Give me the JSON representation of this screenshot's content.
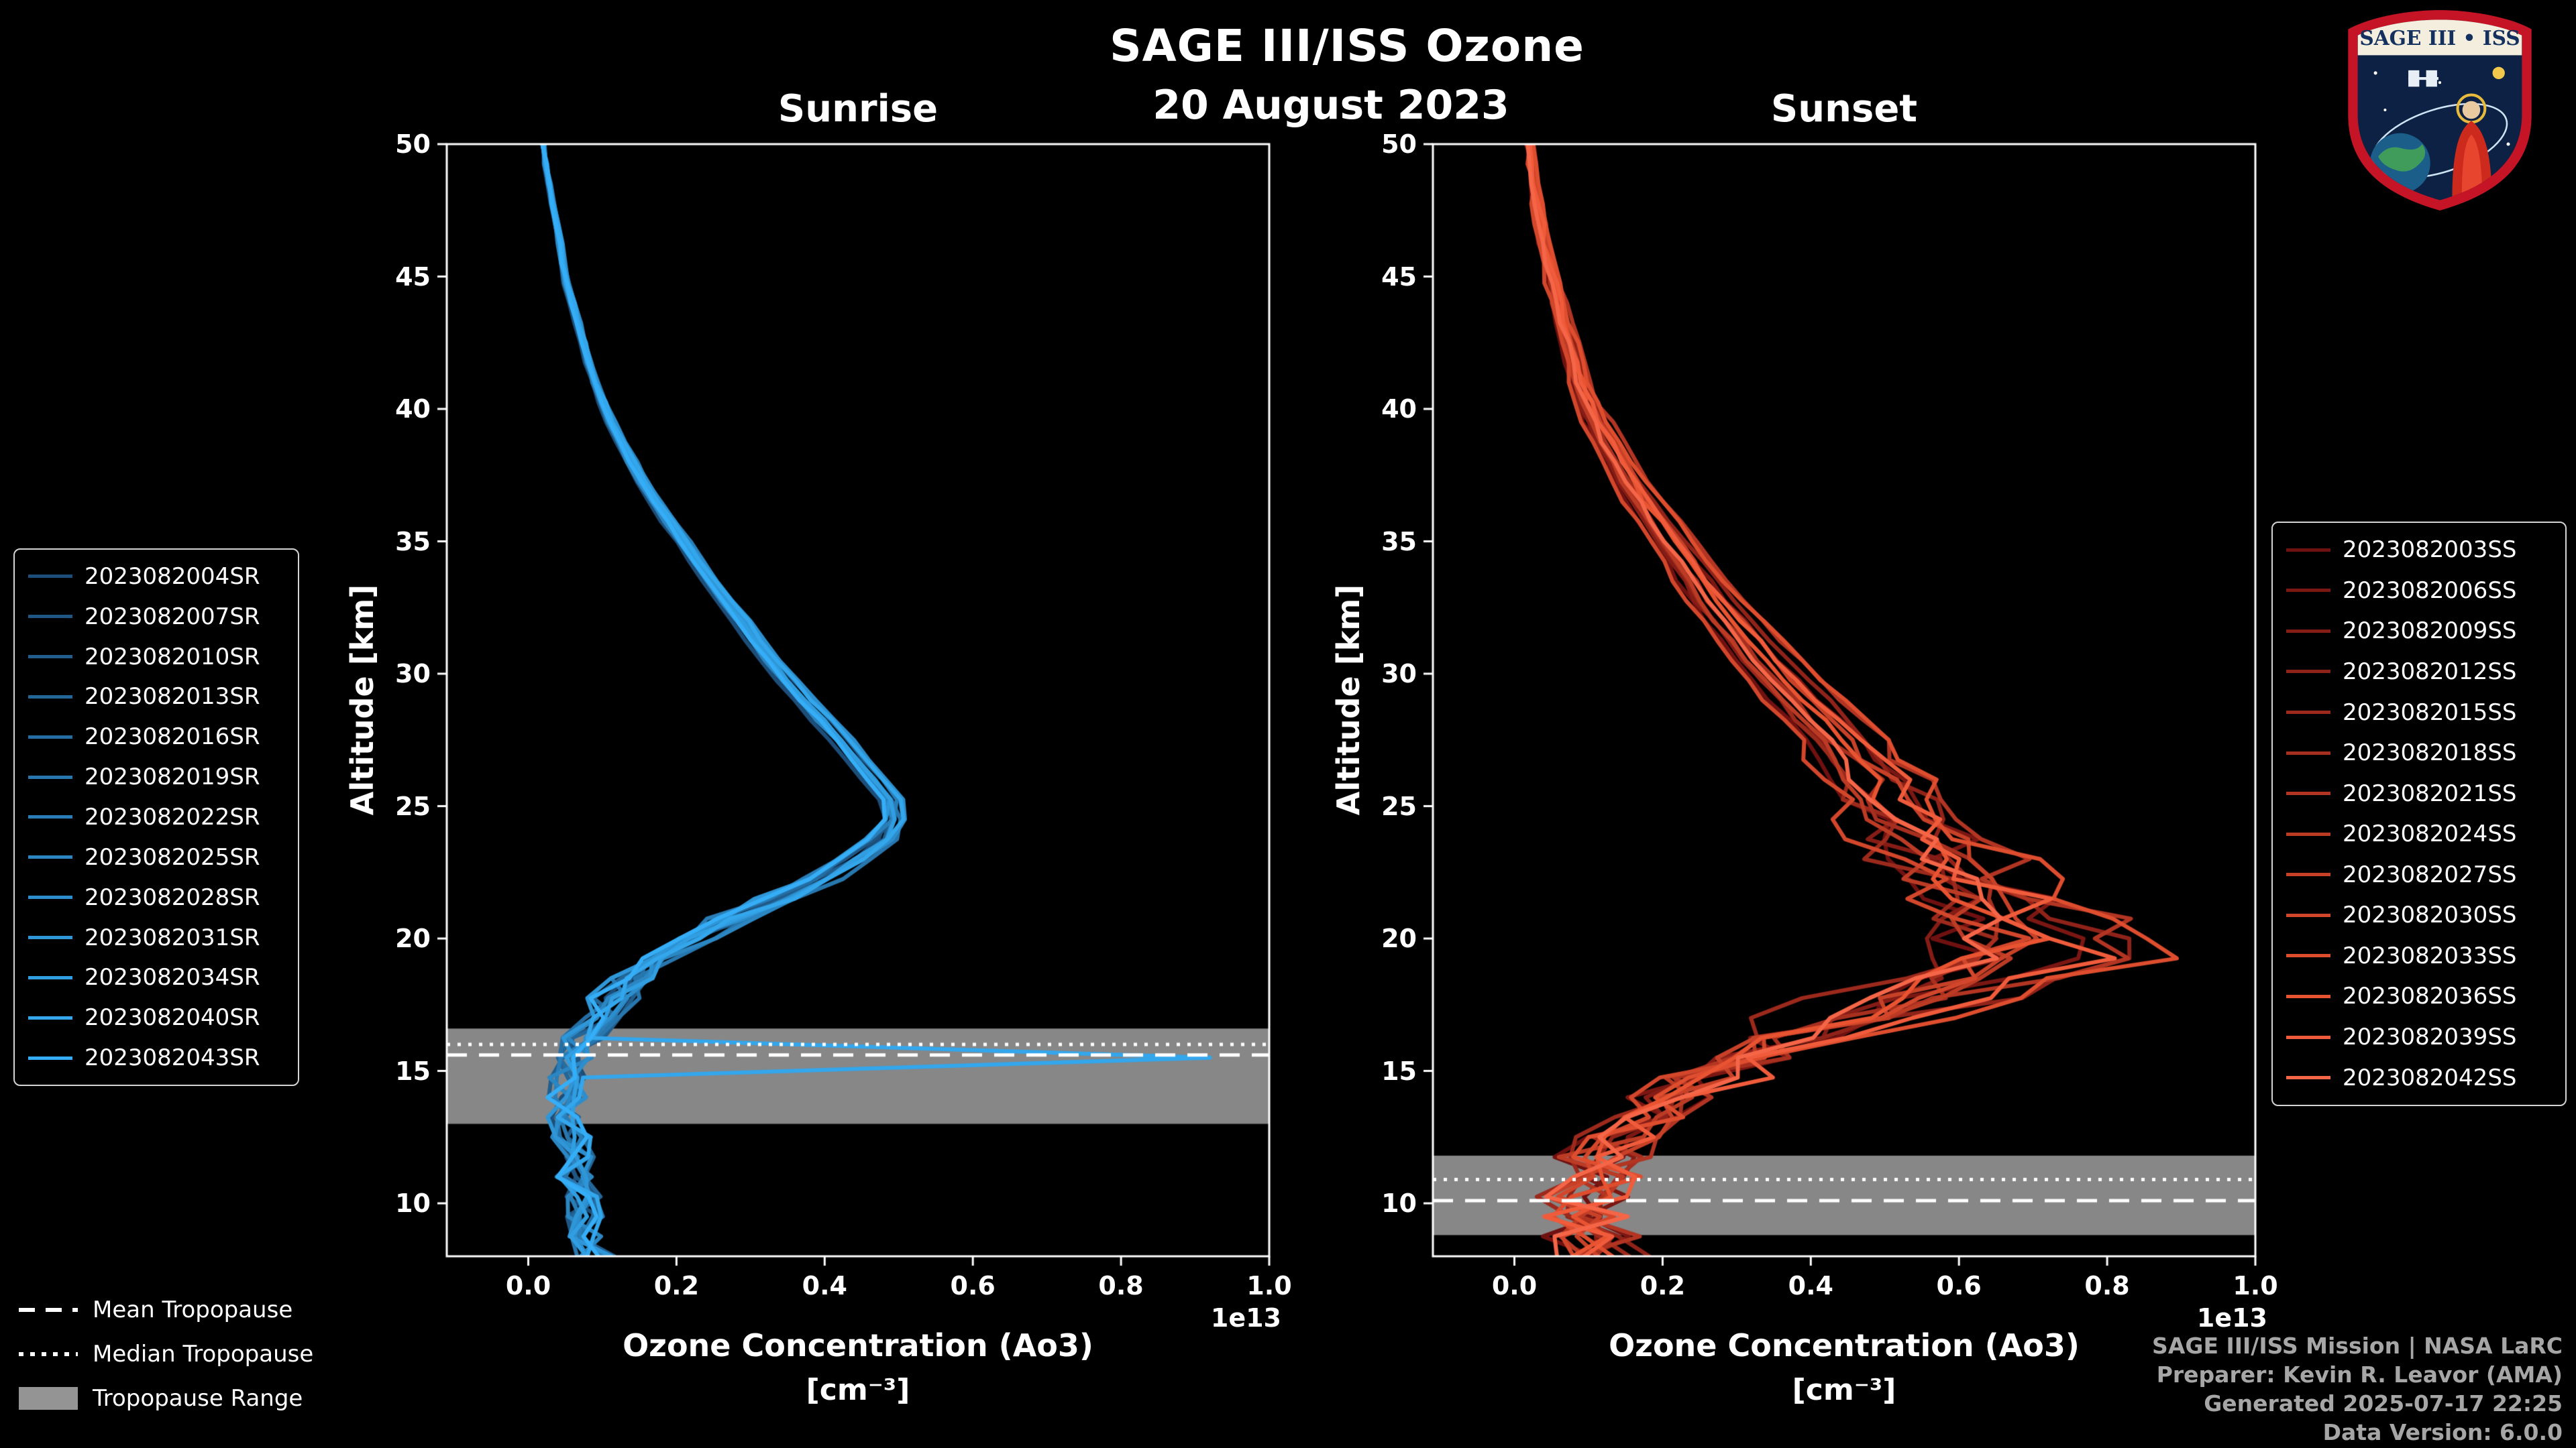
{
  "header": {
    "title": "SAGE III/ISS Ozone",
    "date": "20 August 2023"
  },
  "logo": {
    "title": "SAGE III • ISS"
  },
  "credits": {
    "lines": [
      "SAGE III/ISS Mission | NASA LaRC",
      "Preparer: Kevin R. Leavor (AMA)",
      "Generated 2025-07-17 22:25",
      "Data Version: 6.0.0"
    ]
  },
  "tropopause_legend": {
    "items": [
      {
        "label": "Mean Tropopause",
        "style": "dashed"
      },
      {
        "label": "Median Tropopause",
        "style": "dotted"
      },
      {
        "label": "Tropopause Range",
        "style": "band"
      }
    ]
  },
  "chart_data": [
    {
      "type": "line",
      "title": "Sunrise",
      "xlabel": "Ozone Concentration (Ao3)",
      "xlabel_units": "[cm⁻³]",
      "ylabel": "Altitude [km]",
      "offset_label": "1e13",
      "xlim": [
        -0.11,
        1.0
      ],
      "ylim": [
        8,
        50
      ],
      "xtick_values": [
        0.0,
        0.2,
        0.4,
        0.6,
        0.8,
        1.0
      ],
      "xtick_labels": [
        "0.0",
        "0.2",
        "0.4",
        "0.6",
        "0.8",
        "1.0"
      ],
      "ytick_values": [
        10,
        15,
        20,
        25,
        30,
        35,
        40,
        45,
        50
      ],
      "ytick_labels": [
        "10",
        "15",
        "20",
        "25",
        "30",
        "35",
        "40",
        "45",
        "50"
      ],
      "tropopause": {
        "mean": 15.6,
        "median": 16.0,
        "range": [
          13.0,
          16.6
        ]
      },
      "noise": {
        "amp": 0.028,
        "full_below_km": 18,
        "small_above_km": 24
      },
      "altitudes": [
        8,
        9,
        10,
        11,
        12,
        13,
        14,
        15,
        16,
        17,
        18,
        19,
        20,
        21,
        22,
        23,
        24,
        25,
        26,
        27,
        28,
        29,
        30,
        31,
        32,
        33,
        34,
        35,
        36,
        37,
        38,
        39,
        40,
        41,
        42,
        43,
        44,
        45,
        46,
        47,
        48,
        49,
        50
      ],
      "base_profile": [
        0.09,
        0.08,
        0.07,
        0.065,
        0.06,
        0.055,
        0.05,
        0.055,
        0.07,
        0.095,
        0.12,
        0.16,
        0.22,
        0.3,
        0.38,
        0.44,
        0.49,
        0.5,
        0.47,
        0.44,
        0.41,
        0.375,
        0.345,
        0.315,
        0.29,
        0.26,
        0.235,
        0.21,
        0.185,
        0.16,
        0.14,
        0.12,
        0.105,
        0.09,
        0.08,
        0.07,
        0.06,
        0.05,
        0.045,
        0.038,
        0.03,
        0.025,
        0.02
      ],
      "series": [
        {
          "name": "2023082004SR",
          "color": "#1d4e79",
          "amp": 0.97,
          "shift": 0.2,
          "seed": 11
        },
        {
          "name": "2023082007SR",
          "color": "#1f5683",
          "amp": 1.0,
          "shift": -0.2,
          "seed": 12
        },
        {
          "name": "2023082010SR",
          "color": "#215e8e",
          "amp": 0.99,
          "shift": 0.1,
          "seed": 13
        },
        {
          "name": "2023082013SR",
          "color": "#236698",
          "amp": 1.02,
          "shift": 0.0,
          "seed": 14
        },
        {
          "name": "2023082016SR",
          "color": "#256ea3",
          "amp": 0.98,
          "shift": -0.1,
          "seed": 15
        },
        {
          "name": "2023082019SR",
          "color": "#2776ad",
          "amp": 1.01,
          "shift": 0.3,
          "seed": 16
        },
        {
          "name": "2023082022SR",
          "color": "#297eb8",
          "amp": 1.0,
          "shift": -0.3,
          "seed": 17
        },
        {
          "name": "2023082025SR",
          "color": "#2b86c2",
          "amp": 0.99,
          "shift": 0.2,
          "seed": 18
        },
        {
          "name": "2023082028SR",
          "color": "#2d8ecd",
          "amp": 1.03,
          "shift": 0.0,
          "seed": 19
        },
        {
          "name": "2023082031SR",
          "color": "#2f96d7",
          "amp": 0.98,
          "shift": -0.2,
          "seed": 20
        },
        {
          "name": "2023082034SR",
          "color": "#319ee2",
          "amp": 1.0,
          "shift": 0.1,
          "seed": 21
        },
        {
          "name": "2023082040SR",
          "color": "#33a6ec",
          "amp": 1.02,
          "shift": 0.0,
          "seed": 22,
          "spike": {
            "alt": 15.5,
            "value": 0.92
          }
        },
        {
          "name": "2023082043SR",
          "color": "#35aef7",
          "amp": 0.97,
          "shift": -0.1,
          "seed": 23
        }
      ]
    },
    {
      "type": "line",
      "title": "Sunset",
      "xlabel": "Ozone Concentration (Ao3)",
      "xlabel_units": "[cm⁻³]",
      "ylabel": "Altitude [km]",
      "offset_label": "1e13",
      "xlim": [
        -0.11,
        1.0
      ],
      "ylim": [
        8,
        50
      ],
      "xtick_values": [
        0.0,
        0.2,
        0.4,
        0.6,
        0.8,
        1.0
      ],
      "xtick_labels": [
        "0.0",
        "0.2",
        "0.4",
        "0.6",
        "0.8",
        "1.0"
      ],
      "ytick_values": [
        10,
        15,
        20,
        25,
        30,
        35,
        40,
        45,
        50
      ],
      "ytick_labels": [
        "10",
        "15",
        "20",
        "25",
        "30",
        "35",
        "40",
        "45",
        "50"
      ],
      "tropopause": {
        "mean": 10.1,
        "median": 10.9,
        "range": [
          8.8,
          11.8
        ]
      },
      "noise": {
        "amp": 0.062,
        "full_below_km": 22,
        "small_above_km": 28
      },
      "altitudes": [
        8,
        9,
        10,
        11,
        12,
        13,
        14,
        15,
        16,
        17,
        18,
        19,
        20,
        21,
        22,
        23,
        24,
        25,
        26,
        27,
        28,
        29,
        30,
        31,
        32,
        33,
        34,
        35,
        36,
        37,
        38,
        39,
        40,
        41,
        42,
        43,
        44,
        45,
        46,
        47,
        48,
        49,
        50
      ],
      "base_profile": [
        0.11,
        0.1,
        0.09,
        0.1,
        0.12,
        0.15,
        0.2,
        0.27,
        0.35,
        0.45,
        0.55,
        0.63,
        0.65,
        0.63,
        0.6,
        0.57,
        0.54,
        0.51,
        0.48,
        0.45,
        0.42,
        0.385,
        0.35,
        0.32,
        0.29,
        0.26,
        0.235,
        0.21,
        0.185,
        0.16,
        0.14,
        0.12,
        0.1,
        0.088,
        0.078,
        0.068,
        0.058,
        0.05,
        0.042,
        0.036,
        0.03,
        0.025,
        0.02
      ],
      "series": [
        {
          "name": "2023082003SS",
          "color": "#6f1110",
          "amp": 0.92,
          "shift": 0.3,
          "bump": 0.02,
          "seed": 31
        },
        {
          "name": "2023082006SS",
          "color": "#7a1713",
          "amp": 1.05,
          "shift": -0.2,
          "bump": 0.1,
          "seed": 32
        },
        {
          "name": "2023082009SS",
          "color": "#851d16",
          "amp": 0.96,
          "shift": 0.4,
          "bump": 0.0,
          "seed": 33
        },
        {
          "name": "2023082012SS",
          "color": "#902319",
          "amp": 1.1,
          "shift": 0.0,
          "bump": 0.12,
          "seed": 34
        },
        {
          "name": "2023082015SS",
          "color": "#9b291c",
          "amp": 0.9,
          "shift": -0.4,
          "bump": 0.03,
          "seed": 35
        },
        {
          "name": "2023082018SS",
          "color": "#a62f1f",
          "amp": 1.0,
          "shift": 0.2,
          "bump": 0.0,
          "seed": 36
        },
        {
          "name": "2023082021SS",
          "color": "#b13522",
          "amp": 1.12,
          "shift": -0.3,
          "bump": 0.1,
          "seed": 37
        },
        {
          "name": "2023082024SS",
          "color": "#bc3b25",
          "amp": 0.95,
          "shift": 0.1,
          "bump": 0.04,
          "seed": 38
        },
        {
          "name": "2023082027SS",
          "color": "#c74128",
          "amp": 1.04,
          "shift": -0.1,
          "bump": 0.0,
          "seed": 39
        },
        {
          "name": "2023082030SS",
          "color": "#d2472b",
          "amp": 0.9,
          "shift": 0.3,
          "bump": 0.08,
          "seed": 40
        },
        {
          "name": "2023082033SS",
          "color": "#dd4d2e",
          "amp": 1.15,
          "shift": 0.0,
          "bump": 0.12,
          "seed": 41
        },
        {
          "name": "2023082036SS",
          "color": "#e85331",
          "amp": 1.0,
          "shift": -0.2,
          "bump": 0.02,
          "seed": 42
        },
        {
          "name": "2023082039SS",
          "color": "#f05c3b",
          "amp": 1.08,
          "shift": 0.2,
          "bump": 0.06,
          "seed": 43
        },
        {
          "name": "2023082042SS",
          "color": "#f56547",
          "amp": 0.97,
          "shift": 0.0,
          "bump": 0.0,
          "seed": 44
        }
      ]
    }
  ]
}
